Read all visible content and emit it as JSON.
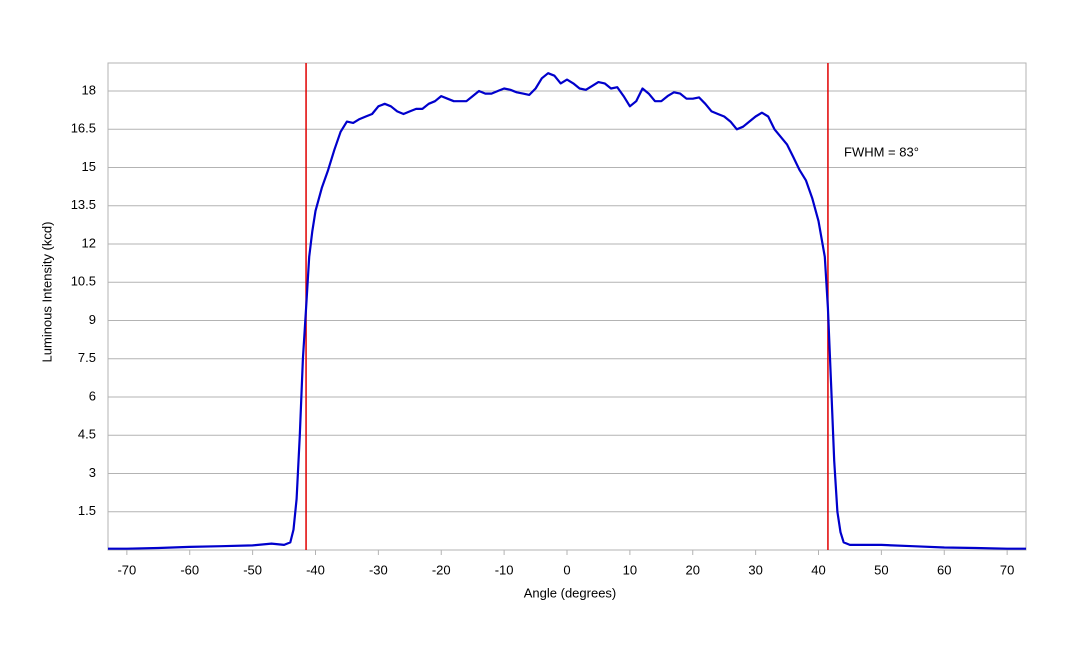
{
  "chart_data": {
    "type": "line",
    "x_label": "Angle (degrees)",
    "y_label": "Luminous Intensity (kcd)",
    "annotation": "FWHM = 83°",
    "xlim": [
      -73,
      73
    ],
    "ylim": [
      0,
      19.1
    ],
    "xticks": [
      -70,
      -60,
      -50,
      -40,
      -30,
      -20,
      -10,
      0,
      10,
      20,
      30,
      40,
      50,
      60,
      70
    ],
    "yticks": [
      1.5,
      3,
      4.5,
      6,
      7.5,
      9,
      10.5,
      12,
      13.5,
      15,
      16.5,
      18
    ],
    "grid": true,
    "vlines": [
      -41.5,
      41.5
    ],
    "vline_color": "#e00000",
    "x": [
      -73,
      -70,
      -65,
      -60,
      -55,
      -50,
      -47,
      -45,
      -44,
      -43.5,
      -43,
      -42.5,
      -42,
      -41.5,
      -41,
      -40.5,
      -40,
      -39,
      -38,
      -37,
      -36,
      -35,
      -34,
      -33,
      -32,
      -31,
      -30,
      -29,
      -28,
      -27,
      -26,
      -25,
      -24,
      -23,
      -22,
      -21,
      -20,
      -19,
      -18,
      -17,
      -16,
      -15,
      -14,
      -13,
      -12,
      -11,
      -10,
      -9,
      -8,
      -7,
      -6,
      -5,
      -4,
      -3,
      -2,
      -1,
      0,
      1,
      2,
      3,
      4,
      5,
      6,
      7,
      8,
      9,
      10,
      11,
      12,
      13,
      14,
      15,
      16,
      17,
      18,
      19,
      20,
      21,
      22,
      23,
      24,
      25,
      26,
      27,
      28,
      29,
      30,
      31,
      32,
      33,
      34,
      35,
      36,
      37,
      38,
      39,
      40,
      41,
      41.5,
      42,
      42.5,
      43,
      43.5,
      44,
      45,
      50,
      55,
      60,
      65,
      70,
      73
    ],
    "series": [
      {
        "color": "#0000cc",
        "values": [
          0.05,
          0.05,
          0.08,
          0.12,
          0.15,
          0.18,
          0.25,
          0.2,
          0.3,
          0.8,
          2.0,
          4.5,
          7.5,
          9.5,
          11.5,
          12.5,
          13.3,
          14.2,
          14.9,
          15.7,
          16.4,
          16.8,
          16.75,
          16.9,
          17.0,
          17.1,
          17.4,
          17.5,
          17.4,
          17.2,
          17.1,
          17.2,
          17.3,
          17.3,
          17.5,
          17.6,
          17.8,
          17.7,
          17.6,
          17.6,
          17.6,
          17.8,
          18.0,
          17.9,
          17.9,
          18.0,
          18.1,
          18.05,
          17.95,
          17.9,
          17.85,
          18.1,
          18.5,
          18.7,
          18.6,
          18.3,
          18.45,
          18.3,
          18.1,
          18.05,
          18.2,
          18.35,
          18.3,
          18.1,
          18.15,
          17.8,
          17.4,
          17.6,
          18.1,
          17.9,
          17.6,
          17.6,
          17.8,
          17.95,
          17.9,
          17.7,
          17.7,
          17.75,
          17.5,
          17.2,
          17.1,
          17.0,
          16.8,
          16.5,
          16.6,
          16.8,
          17.0,
          17.15,
          17.0,
          16.5,
          16.2,
          15.9,
          15.4,
          14.9,
          14.5,
          13.8,
          12.9,
          11.5,
          9.5,
          6.5,
          3.5,
          1.5,
          0.7,
          0.3,
          0.2,
          0.2,
          0.15,
          0.1,
          0.08,
          0.05,
          0.05
        ]
      }
    ]
  }
}
